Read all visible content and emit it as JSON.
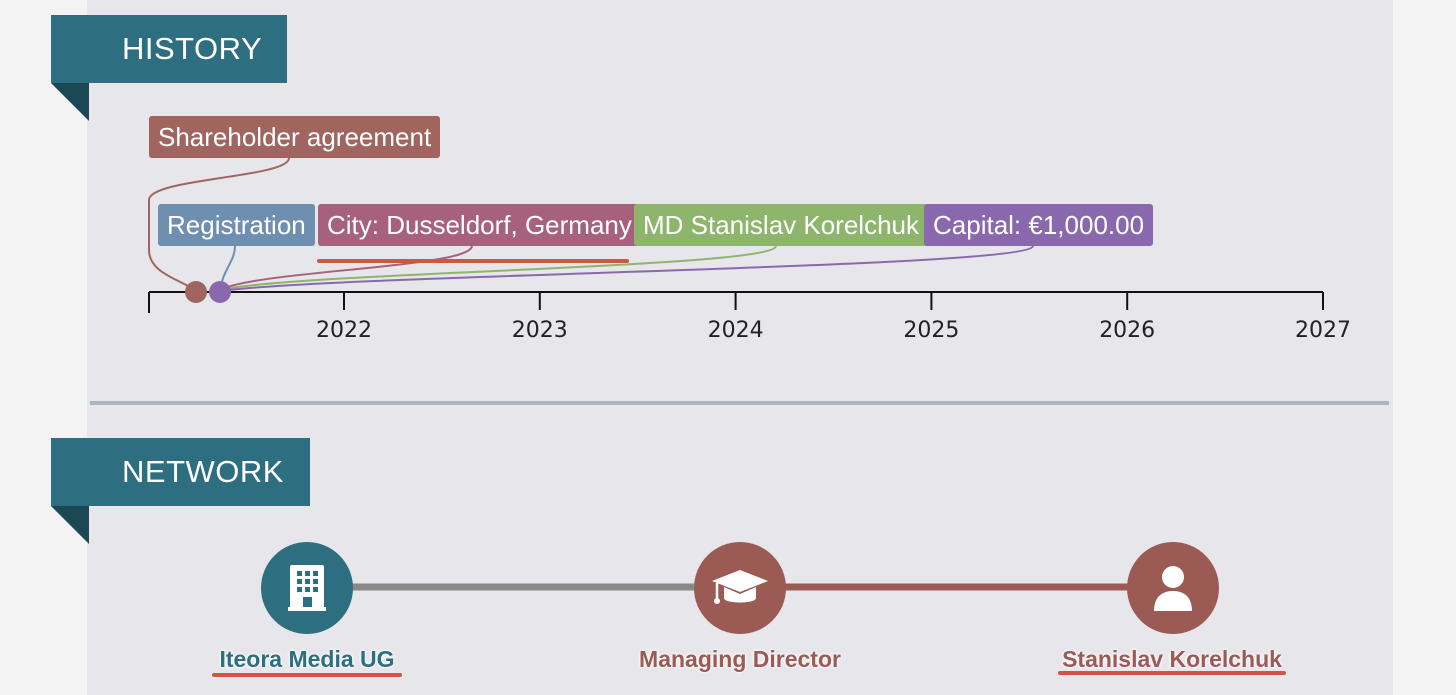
{
  "history": {
    "title": "HISTORY",
    "events": [
      {
        "label": "Shareholder agreement",
        "color": "#a0655f"
      },
      {
        "label": "Registration",
        "color": "#6f8fb0"
      },
      {
        "label": "City: Dusseldorf, Germany",
        "color": "#a7617d"
      },
      {
        "label": "MD Stanislav Korelchuk",
        "color": "#8db56b"
      },
      {
        "label": "Capital: €1,000.00",
        "color": "#8a68ae"
      }
    ],
    "axis_ticks": [
      "2022",
      "2023",
      "2024",
      "2025",
      "2026",
      "2027"
    ]
  },
  "network": {
    "title": "NETWORK",
    "nodes": [
      {
        "label": "Iteora Media UG",
        "icon": "building-icon",
        "color": "#2d6e80",
        "label_color": "#2d6e80"
      },
      {
        "label": "Managing Director",
        "icon": "graduation-cap-icon",
        "color": "#9b5a54",
        "label_color": "#9b5a54"
      },
      {
        "label": "Stanislav Korelchuk",
        "icon": "person-icon",
        "color": "#9b5a54",
        "label_color": "#9b5a54"
      }
    ],
    "edge_colors": [
      "#8a8a8a",
      "#9b5a54"
    ]
  },
  "colors": {
    "ribbon": "#2d6e80",
    "link_underline": "#cf5547"
  }
}
